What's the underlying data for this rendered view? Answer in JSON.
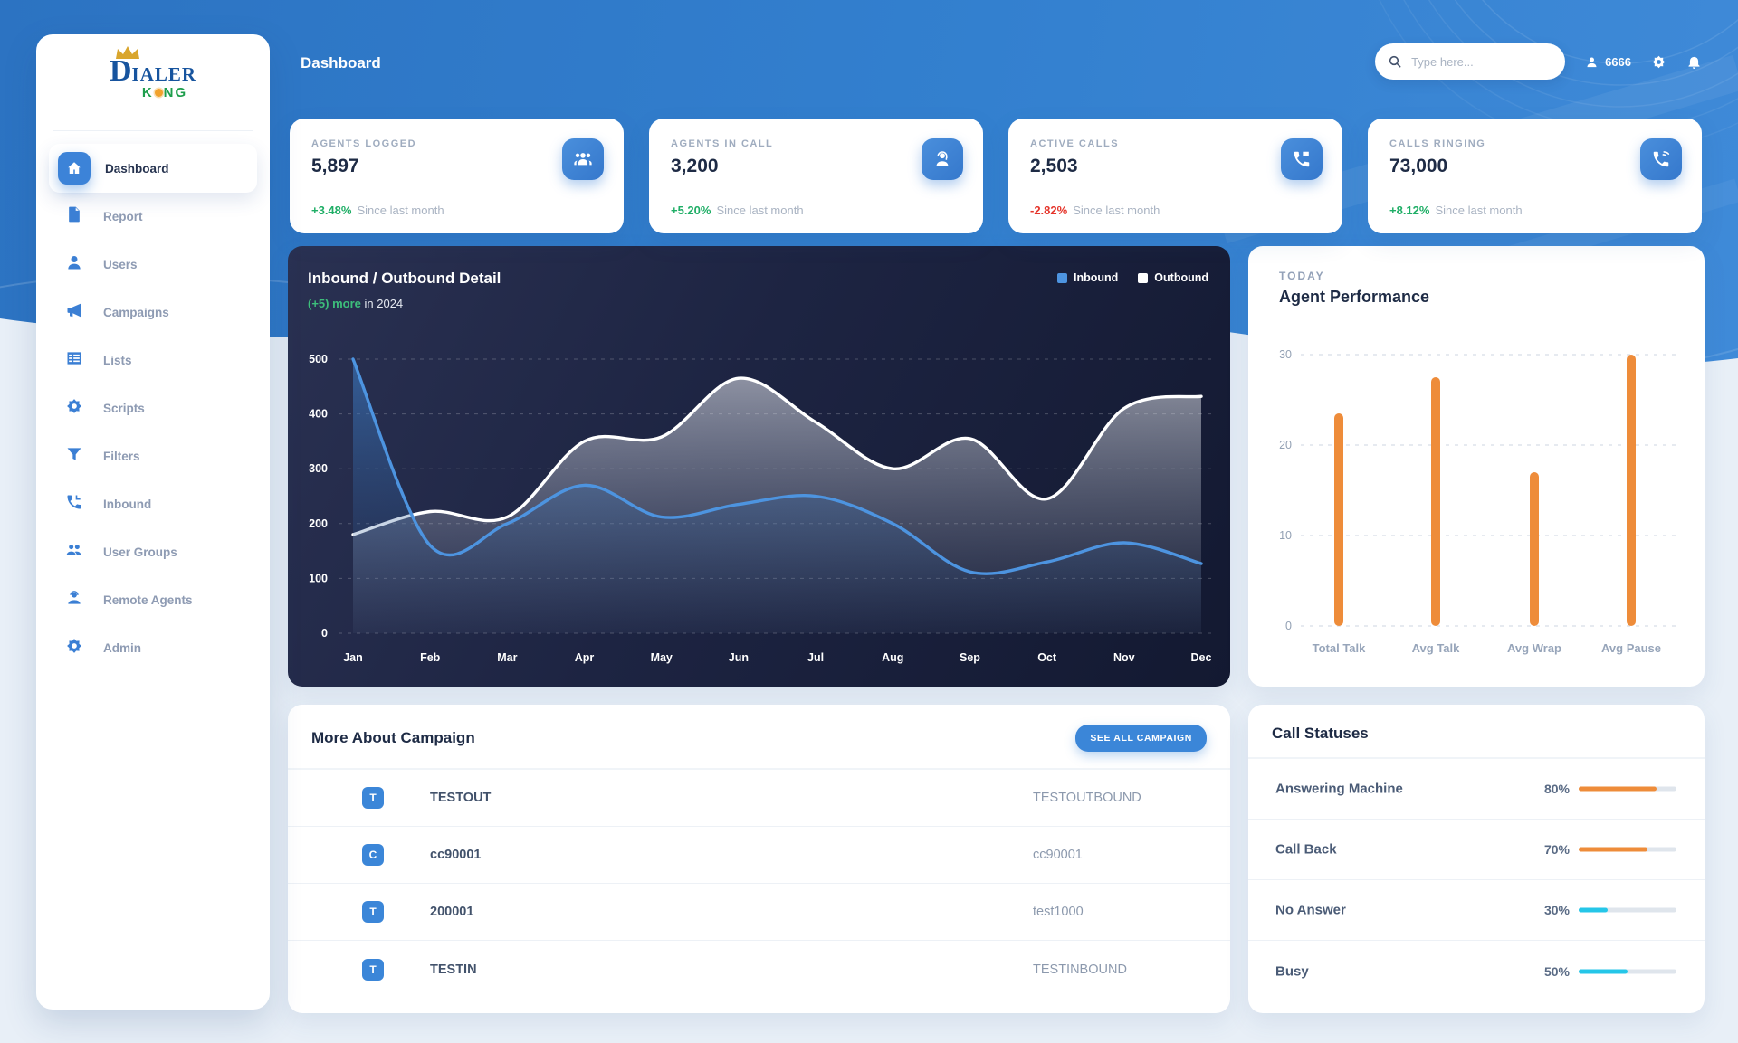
{
  "logo": {
    "word_main_initial": "D",
    "word_main_rest": "IALER",
    "word_sub_pre": "K",
    "word_sub_post": "NG"
  },
  "header": {
    "page_title": "Dashboard",
    "search_placeholder": "Type here...",
    "user_id": "6666"
  },
  "sidebar": {
    "items": [
      {
        "label": "Dashboard",
        "icon": "home",
        "active": true
      },
      {
        "label": "Report",
        "icon": "report",
        "active": false
      },
      {
        "label": "Users",
        "icon": "users",
        "active": false
      },
      {
        "label": "Campaigns",
        "icon": "campaigns",
        "active": false
      },
      {
        "label": "Lists",
        "icon": "lists",
        "active": false
      },
      {
        "label": "Scripts",
        "icon": "scripts",
        "active": false
      },
      {
        "label": "Filters",
        "icon": "filters",
        "active": false
      },
      {
        "label": "Inbound",
        "icon": "inbound",
        "active": false
      },
      {
        "label": "User Groups",
        "icon": "user-groups",
        "active": false
      },
      {
        "label": "Remote Agents",
        "icon": "remote-agents",
        "active": false
      },
      {
        "label": "Admin",
        "icon": "admin",
        "active": false
      }
    ]
  },
  "stat_cards": [
    {
      "label": "AGENTS LOGGED",
      "value": "5,897",
      "delta": "+3.48%",
      "delta_dir": "up",
      "note": "Since last month",
      "icon": "agents"
    },
    {
      "label": "AGENTS IN CALL",
      "value": "3,200",
      "delta": "+5.20%",
      "delta_dir": "up",
      "note": "Since last month",
      "icon": "headset"
    },
    {
      "label": "ACTIVE CALLS",
      "value": "2,503",
      "delta": "-2.82%",
      "delta_dir": "down",
      "note": "Since last month",
      "icon": "phone-chat"
    },
    {
      "label": "CALLS RINGING",
      "value": "73,000",
      "delta": "+8.12%",
      "delta_dir": "up",
      "note": "Since last month",
      "icon": "phone-ring"
    }
  ],
  "chart_data": [
    {
      "type": "area",
      "title": "Inbound / Outbound Detail",
      "subtitle_highlight": "(+5) more",
      "subtitle_rest": "in 2024",
      "categories": [
        "Jan",
        "Feb",
        "Mar",
        "Apr",
        "May",
        "Jun",
        "Jul",
        "Aug",
        "Sep",
        "Oct",
        "Nov",
        "Dec"
      ],
      "series": [
        {
          "name": "Outbound",
          "color": "#FFFFFF",
          "values": [
            180,
            222,
            212,
            350,
            358,
            465,
            385,
            300,
            355,
            245,
            410,
            432
          ]
        },
        {
          "name": "Inbound",
          "color": "#4D94E0",
          "values": [
            500,
            160,
            200,
            270,
            212,
            235,
            250,
            200,
            112,
            130,
            165,
            127
          ]
        }
      ],
      "ylim": [
        0,
        500
      ],
      "yticks": [
        0,
        100,
        200,
        300,
        400,
        500
      ],
      "grid": "dashed",
      "legend_position": "top-right"
    },
    {
      "type": "bar",
      "context_label": "TODAY",
      "title": "Agent Performance",
      "categories": [
        "Total Talk",
        "Avg Talk",
        "Avg Wrap",
        "Avg Pause"
      ],
      "values": [
        23.5,
        27.5,
        17,
        30
      ],
      "bar_color": "#EE8C3A",
      "ylim": [
        0,
        30
      ],
      "yticks": [
        0,
        10,
        20,
        30
      ],
      "grid": "dashed"
    }
  ],
  "campaigns": {
    "title": "More About Campaign",
    "button_label": "SEE ALL CAMPAIGN",
    "rows": [
      {
        "badge": "T",
        "name": "TESTOUT",
        "detail": "TESTOUTBOUND"
      },
      {
        "badge": "C",
        "name": "cc90001",
        "detail": "cc90001"
      },
      {
        "badge": "T",
        "name": "200001",
        "detail": "test1000"
      },
      {
        "badge": "T",
        "name": "TESTIN",
        "detail": "TESTINBOUND"
      }
    ]
  },
  "call_statuses": {
    "title": "Call Statuses",
    "rows": [
      {
        "label": "Answering Machine",
        "percent": "80%",
        "value": 80,
        "color": "#EE8C3A"
      },
      {
        "label": "Call Back",
        "percent": "70%",
        "value": 70,
        "color": "#EE8C3A"
      },
      {
        "label": "No Answer",
        "percent": "30%",
        "value": 30,
        "color": "#25C6E8"
      },
      {
        "label": "Busy",
        "percent": "50%",
        "value": 50,
        "color": "#25C6E8"
      }
    ]
  },
  "colors": {
    "band_blue": "#3380CF",
    "accent_blue": "#3B86D8",
    "green": "#1FAE66",
    "red": "#E5352B",
    "orange": "#EE8C3A",
    "cyan": "#25C6E8",
    "chart_navy": "#1D2442"
  }
}
